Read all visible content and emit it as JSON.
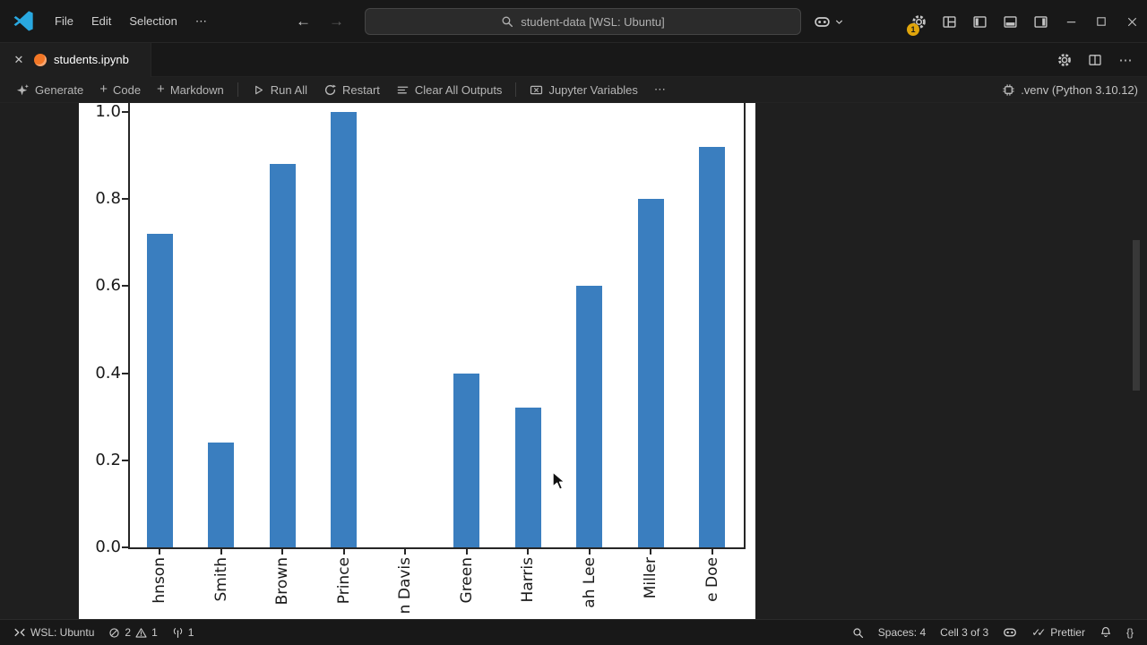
{
  "title_bar": {
    "menus": [
      "File",
      "Edit",
      "Selection"
    ],
    "more_label": "⋯",
    "back": "←",
    "forward": "→",
    "search_text": "student-data [WSL: Ubuntu]",
    "settings_badge": "1"
  },
  "tab_bar": {
    "close": "✕",
    "tab_label": "students.ipynb",
    "more_label": "⋯"
  },
  "toolbar": {
    "plus": "+",
    "generate": "Generate",
    "add_code": "Code",
    "add_markdown": "Markdown",
    "run_all": "Run All",
    "restart": "Restart",
    "clear_all_outputs": "Clear All Outputs",
    "jupyter_variables": "Jupyter Variables",
    "more_label": "⋯",
    "kernel_label": ".venv (Python 3.10.12)"
  },
  "chart_data": {
    "type": "bar",
    "categories_visible": [
      "hnson",
      "Smith",
      "Brown",
      "Prince",
      "n Davis",
      "Green",
      "Harris",
      "ah Lee",
      "Miller",
      "e Doe"
    ],
    "values": [
      0.72,
      0.24,
      0.88,
      1.0,
      0.0,
      0.4,
      0.32,
      0.6,
      0.8,
      0.92
    ],
    "ytick_values": [
      0.0,
      0.2,
      0.4,
      0.6,
      0.8,
      1.0
    ],
    "ytick_labels": [
      "0.0",
      "0.2",
      "0.4",
      "0.6",
      "0.8",
      "1.0"
    ],
    "ylim": [
      0.0,
      1.0
    ],
    "bar_color": "#3a7ebf",
    "background": "#ffffff",
    "grid": false,
    "title": "",
    "xlabel": "",
    "ylabel": "",
    "legend": null
  },
  "status_bar": {
    "remote_label": "WSL: Ubuntu",
    "error_count": "2",
    "warning_count": "1",
    "ports_count": "1",
    "spaces_label": "Spaces: 4",
    "cell_label": "Cell 3 of 3",
    "check_double": "✓✓",
    "prettier_label": "Prettier",
    "braces": "{}"
  }
}
